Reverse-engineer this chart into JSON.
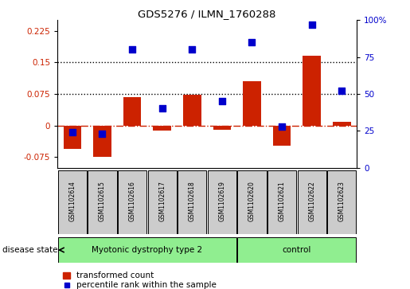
{
  "title": "GDS5276 / ILMN_1760288",
  "samples": [
    "GSM1102614",
    "GSM1102615",
    "GSM1102616",
    "GSM1102617",
    "GSM1102618",
    "GSM1102619",
    "GSM1102620",
    "GSM1102621",
    "GSM1102622",
    "GSM1102623"
  ],
  "transformed_count": [
    -0.055,
    -0.075,
    0.068,
    -0.012,
    0.073,
    -0.01,
    0.105,
    -0.048,
    0.165,
    0.008
  ],
  "percentile_rank": [
    24,
    23,
    80,
    40,
    80,
    45,
    85,
    28,
    97,
    52
  ],
  "groups": [
    {
      "label": "Myotonic dystrophy type 2",
      "start": 0,
      "end": 5,
      "color": "#90EE90"
    },
    {
      "label": "control",
      "start": 6,
      "end": 9,
      "color": "#90EE90"
    }
  ],
  "bar_color": "#CC2200",
  "scatter_color": "#0000CC",
  "left_ylim": [
    -0.1,
    0.25
  ],
  "left_yticks": [
    -0.075,
    0,
    0.075,
    0.15,
    0.225
  ],
  "right_ylim": [
    0,
    100
  ],
  "right_yticks": [
    0,
    25,
    50,
    75,
    100
  ],
  "right_yticklabels": [
    "0",
    "25",
    "50",
    "75",
    "100%"
  ],
  "hlines": [
    0.075,
    0.15
  ],
  "zero_line": 0.0,
  "background_color": "#ffffff",
  "disease_state_label": "disease state",
  "legend_items": [
    "transformed count",
    "percentile rank within the sample"
  ],
  "group_box_color": "#CCCCCC",
  "zero_line_color": "#CC2200",
  "dotted_line_color": "#000000",
  "bar_width": 0.6
}
